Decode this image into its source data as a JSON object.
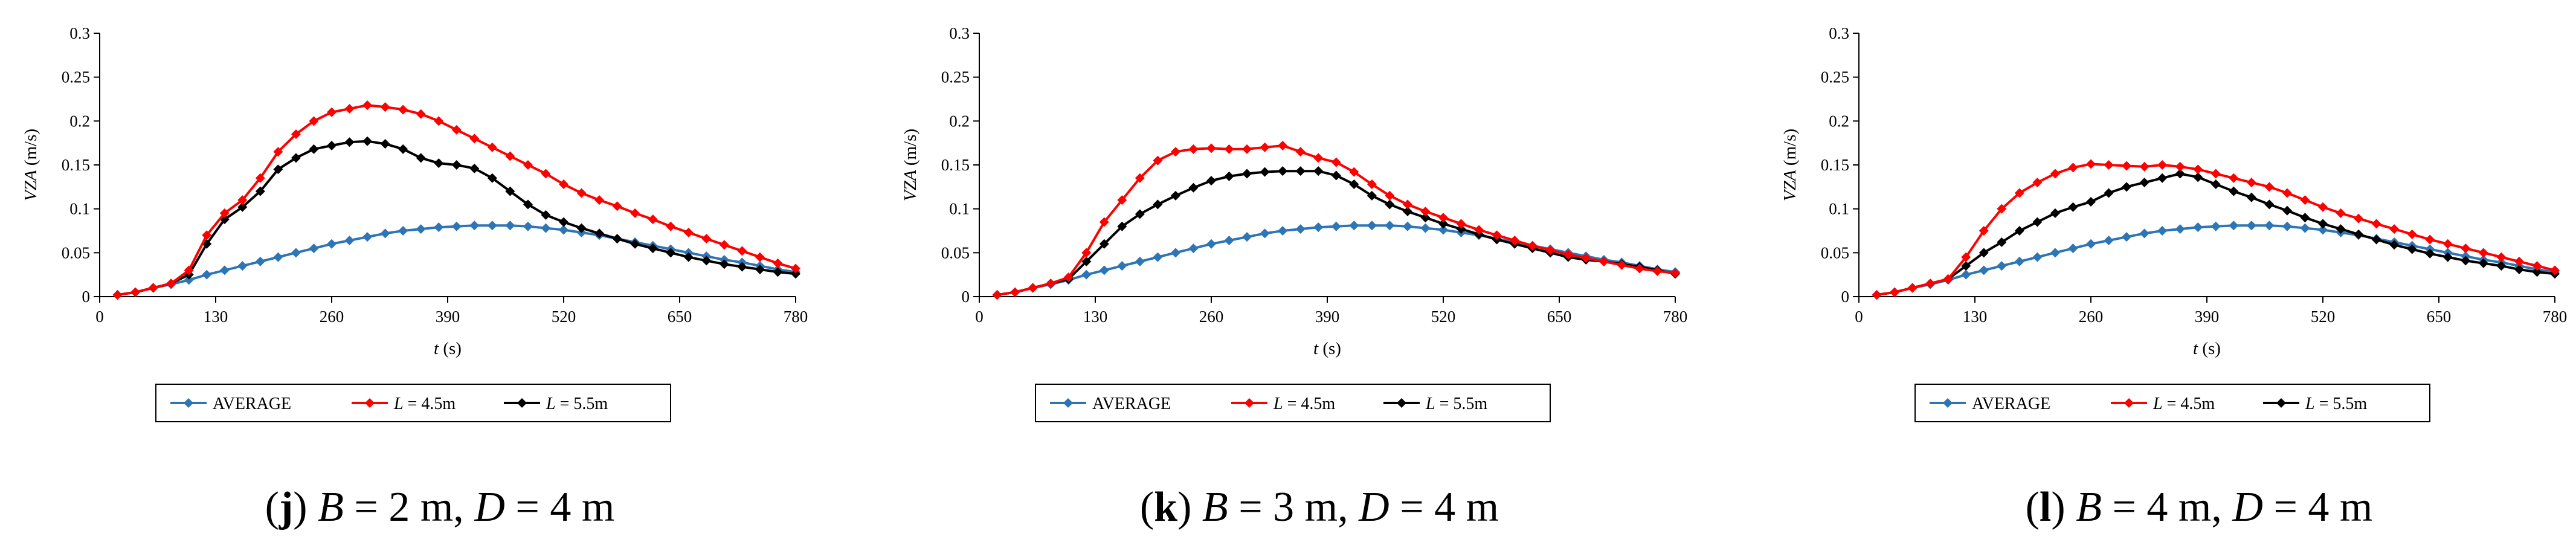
{
  "chart_data": [
    {
      "type": "line",
      "panel_letter": "j",
      "caption_parts": {
        "b_label": "B",
        "b_value": " = 2 m, ",
        "d_label": "D",
        "d_value": " = 4 m"
      },
      "title": "",
      "xlabel": "(s)",
      "xlabel_var": "t",
      "ylabel": "(m/s)",
      "ylabel_var": "VZA",
      "xlim": [
        0,
        780
      ],
      "ylim": [
        0,
        0.3
      ],
      "xticks": [
        "0",
        "130",
        "260",
        "390",
        "520",
        "650",
        "780"
      ],
      "yticks": [
        "0",
        "0.05",
        "0.1",
        "0.15",
        "0.2",
        "0.25",
        "0.3"
      ],
      "x": [
        20,
        40,
        60,
        80,
        100,
        120,
        140,
        160,
        180,
        200,
        220,
        240,
        260,
        280,
        300,
        320,
        340,
        360,
        380,
        400,
        420,
        440,
        460,
        480,
        500,
        520,
        540,
        560,
        580,
        600,
        620,
        640,
        660,
        680,
        700,
        720,
        740,
        760,
        780
      ],
      "legend_position": "bottom",
      "series": [
        {
          "name": "AVERAGE",
          "name_var": "",
          "name_rest": "AVERAGE",
          "color": "#2E75B6",
          "values": [
            0.002,
            0.005,
            0.01,
            0.014,
            0.019,
            0.025,
            0.03,
            0.035,
            0.04,
            0.045,
            0.05,
            0.055,
            0.06,
            0.064,
            0.068,
            0.072,
            0.075,
            0.077,
            0.079,
            0.08,
            0.081,
            0.081,
            0.081,
            0.08,
            0.078,
            0.076,
            0.073,
            0.07,
            0.066,
            0.062,
            0.058,
            0.054,
            0.05,
            0.046,
            0.042,
            0.039,
            0.035,
            0.031,
            0.028
          ]
        },
        {
          "name": "L = 4.5m",
          "name_var": "L",
          "name_rest": " = 4.5m",
          "color": "#FF0000",
          "values": [
            0.002,
            0.005,
            0.01,
            0.015,
            0.03,
            0.07,
            0.095,
            0.11,
            0.135,
            0.165,
            0.185,
            0.2,
            0.21,
            0.214,
            0.218,
            0.216,
            0.213,
            0.208,
            0.2,
            0.19,
            0.18,
            0.17,
            0.16,
            0.15,
            0.14,
            0.128,
            0.118,
            0.11,
            0.103,
            0.095,
            0.088,
            0.08,
            0.073,
            0.066,
            0.059,
            0.052,
            0.045,
            0.038,
            0.032
          ]
        },
        {
          "name": "L = 5.5m",
          "name_var": "L",
          "name_rest": " = 5.5m",
          "color": "#000000",
          "values": [
            0.002,
            0.005,
            0.01,
            0.015,
            0.025,
            0.06,
            0.088,
            0.102,
            0.12,
            0.145,
            0.158,
            0.168,
            0.172,
            0.176,
            0.177,
            0.174,
            0.168,
            0.158,
            0.152,
            0.15,
            0.146,
            0.135,
            0.12,
            0.105,
            0.093,
            0.085,
            0.078,
            0.072,
            0.066,
            0.06,
            0.055,
            0.05,
            0.045,
            0.041,
            0.037,
            0.034,
            0.031,
            0.028,
            0.026
          ]
        }
      ]
    },
    {
      "type": "line",
      "panel_letter": "k",
      "caption_parts": {
        "b_label": "B",
        "b_value": " = 3 m, ",
        "d_label": "D",
        "d_value": " = 4 m"
      },
      "title": "",
      "xlabel": "(s)",
      "xlabel_var": "t",
      "ylabel": "(m/s)",
      "ylabel_var": "VZA",
      "xlim": [
        0,
        780
      ],
      "ylim": [
        0,
        0.3
      ],
      "xticks": [
        "0",
        "130",
        "260",
        "390",
        "520",
        "650",
        "780"
      ],
      "yticks": [
        "0",
        "0.05",
        "0.1",
        "0.15",
        "0.2",
        "0.25",
        "0.3"
      ],
      "x": [
        20,
        40,
        60,
        80,
        100,
        120,
        140,
        160,
        180,
        200,
        220,
        240,
        260,
        280,
        300,
        320,
        340,
        360,
        380,
        400,
        420,
        440,
        460,
        480,
        500,
        520,
        540,
        560,
        580,
        600,
        620,
        640,
        660,
        680,
        700,
        720,
        740,
        760,
        780
      ],
      "legend_position": "bottom",
      "series": [
        {
          "name": "AVERAGE",
          "name_var": "",
          "name_rest": "AVERAGE",
          "color": "#2E75B6",
          "values": [
            0.002,
            0.005,
            0.01,
            0.014,
            0.019,
            0.025,
            0.03,
            0.035,
            0.04,
            0.045,
            0.05,
            0.055,
            0.06,
            0.064,
            0.068,
            0.072,
            0.075,
            0.077,
            0.079,
            0.08,
            0.081,
            0.081,
            0.081,
            0.08,
            0.078,
            0.076,
            0.073,
            0.07,
            0.066,
            0.062,
            0.058,
            0.054,
            0.05,
            0.046,
            0.042,
            0.039,
            0.035,
            0.031,
            0.028
          ]
        },
        {
          "name": "L = 4.5m",
          "name_var": "L",
          "name_rest": " = 4.5m",
          "color": "#FF0000",
          "values": [
            0.002,
            0.005,
            0.01,
            0.015,
            0.022,
            0.05,
            0.085,
            0.11,
            0.135,
            0.155,
            0.165,
            0.168,
            0.169,
            0.168,
            0.168,
            0.17,
            0.172,
            0.165,
            0.158,
            0.153,
            0.142,
            0.128,
            0.115,
            0.105,
            0.097,
            0.09,
            0.083,
            0.076,
            0.07,
            0.064,
            0.058,
            0.053,
            0.048,
            0.044,
            0.04,
            0.036,
            0.032,
            0.029,
            0.027
          ]
        },
        {
          "name": "L = 5.5m",
          "name_var": "L",
          "name_rest": " = 5.5m",
          "color": "#000000",
          "values": [
            0.002,
            0.005,
            0.01,
            0.015,
            0.02,
            0.04,
            0.06,
            0.08,
            0.094,
            0.105,
            0.115,
            0.124,
            0.132,
            0.137,
            0.14,
            0.142,
            0.143,
            0.143,
            0.143,
            0.138,
            0.128,
            0.115,
            0.105,
            0.097,
            0.09,
            0.083,
            0.077,
            0.071,
            0.065,
            0.06,
            0.055,
            0.05,
            0.045,
            0.042,
            0.04,
            0.037,
            0.034,
            0.03,
            0.026
          ]
        }
      ]
    },
    {
      "type": "line",
      "panel_letter": "l",
      "caption_parts": {
        "b_label": "B",
        "b_value": " = 4 m, ",
        "d_label": "D",
        "d_value": " = 4 m"
      },
      "title": "",
      "xlabel": "(s)",
      "xlabel_var": "t",
      "ylabel": "(m/s)",
      "ylabel_var": "VZA",
      "xlim": [
        0,
        780
      ],
      "ylim": [
        0,
        0.3
      ],
      "xticks": [
        "0",
        "130",
        "260",
        "390",
        "520",
        "650",
        "780"
      ],
      "yticks": [
        "0",
        "0.05",
        "0.1",
        "0.15",
        "0.2",
        "0.25",
        "0.3"
      ],
      "x": [
        20,
        40,
        60,
        80,
        100,
        120,
        140,
        160,
        180,
        200,
        220,
        240,
        260,
        280,
        300,
        320,
        340,
        360,
        380,
        400,
        420,
        440,
        460,
        480,
        500,
        520,
        540,
        560,
        580,
        600,
        620,
        640,
        660,
        680,
        700,
        720,
        740,
        760,
        780
      ],
      "legend_position": "bottom",
      "series": [
        {
          "name": "AVERAGE",
          "name_var": "",
          "name_rest": "AVERAGE",
          "color": "#2E75B6",
          "values": [
            0.002,
            0.005,
            0.01,
            0.014,
            0.019,
            0.025,
            0.03,
            0.035,
            0.04,
            0.045,
            0.05,
            0.055,
            0.06,
            0.064,
            0.068,
            0.072,
            0.075,
            0.077,
            0.079,
            0.08,
            0.081,
            0.081,
            0.081,
            0.08,
            0.078,
            0.076,
            0.073,
            0.07,
            0.066,
            0.062,
            0.058,
            0.054,
            0.05,
            0.046,
            0.042,
            0.039,
            0.035,
            0.031,
            0.028
          ]
        },
        {
          "name": "L = 4.5m",
          "name_var": "L",
          "name_rest": " = 4.5m",
          "color": "#FF0000",
          "values": [
            0.002,
            0.005,
            0.01,
            0.015,
            0.02,
            0.045,
            0.075,
            0.1,
            0.118,
            0.13,
            0.14,
            0.147,
            0.151,
            0.15,
            0.149,
            0.148,
            0.15,
            0.148,
            0.145,
            0.14,
            0.135,
            0.13,
            0.125,
            0.118,
            0.11,
            0.102,
            0.095,
            0.089,
            0.083,
            0.077,
            0.071,
            0.065,
            0.06,
            0.055,
            0.05,
            0.045,
            0.04,
            0.035,
            0.03
          ]
        },
        {
          "name": "L = 5.5m",
          "name_var": "L",
          "name_rest": " = 5.5m",
          "color": "#000000",
          "values": [
            0.002,
            0.005,
            0.01,
            0.015,
            0.02,
            0.035,
            0.05,
            0.062,
            0.075,
            0.085,
            0.095,
            0.102,
            0.108,
            0.118,
            0.125,
            0.13,
            0.135,
            0.14,
            0.136,
            0.128,
            0.12,
            0.113,
            0.105,
            0.098,
            0.09,
            0.083,
            0.077,
            0.071,
            0.065,
            0.059,
            0.054,
            0.049,
            0.045,
            0.041,
            0.038,
            0.035,
            0.031,
            0.028,
            0.026
          ]
        }
      ]
    }
  ]
}
